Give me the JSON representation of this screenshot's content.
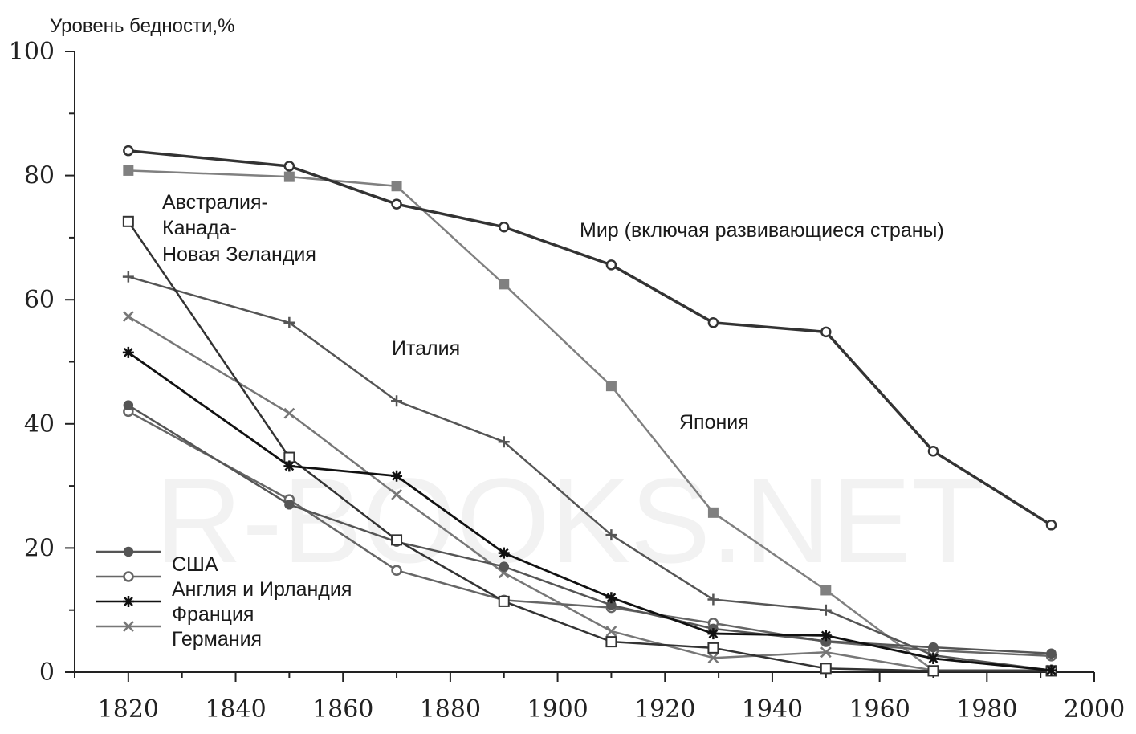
{
  "chart_data": {
    "type": "line",
    "ylabel": "Уровень бедности,%",
    "xlim": [
      1810,
      2000
    ],
    "ylim": [
      0,
      100
    ],
    "x_ticks": [
      1820,
      1840,
      1860,
      1880,
      1900,
      1920,
      1940,
      1960,
      1980,
      2000
    ],
    "y_ticks": [
      0,
      20,
      40,
      60,
      80,
      100
    ],
    "grid": false,
    "legend_position": "bottom-left",
    "watermark": "R-BOOKS.NET",
    "annotations": [
      {
        "text": "Австралия-",
        "series": "Австралия-Канада-Новая Зеландия"
      },
      {
        "text": "Канада-",
        "series": "Австралия-Канада-Новая Зеландия"
      },
      {
        "text": "Новая Зеландия",
        "series": "Австралия-Канада-Новая Зеландия"
      },
      {
        "text": "Италия",
        "series": "Италия"
      },
      {
        "text": "Япония",
        "series": "Япония"
      },
      {
        "text": "Мир (включая развивающиеся страны)",
        "series": "Мир (включая развивающиеся страны)"
      }
    ],
    "series": [
      {
        "name": "Мир (включая развивающиеся страны)",
        "marker": "open-circle",
        "color": "#333333",
        "x": [
          1820,
          1850,
          1870,
          1890,
          1910,
          1929,
          1950,
          1970,
          1992
        ],
        "y": [
          84.0,
          81.5,
          75.4,
          71.7,
          65.6,
          56.3,
          54.8,
          35.6,
          23.7
        ]
      },
      {
        "name": "Япония",
        "marker": "filled-square",
        "color": "#808080",
        "x": [
          1820,
          1850,
          1870,
          1890,
          1910,
          1929,
          1950,
          1970,
          1992
        ],
        "y": [
          80.8,
          79.8,
          78.3,
          62.5,
          46.1,
          25.7,
          13.2,
          0.3,
          0.3
        ]
      },
      {
        "name": "Австралия-Канада-Новая Зеландия",
        "marker": "open-square",
        "color": "#333333",
        "x": [
          1820,
          1850,
          1870,
          1890,
          1910,
          1929,
          1950,
          1970,
          1992
        ],
        "y": [
          72.6,
          34.6,
          21.3,
          11.4,
          4.9,
          3.9,
          0.6,
          0.2,
          0.2
        ]
      },
      {
        "name": "Италия",
        "marker": "plus",
        "color": "#555555",
        "x": [
          1820,
          1850,
          1870,
          1890,
          1910,
          1929,
          1950,
          1970,
          1992
        ],
        "y": [
          63.7,
          56.3,
          43.7,
          37.1,
          22.1,
          11.7,
          10.0,
          2.7,
          0.3
        ]
      },
      {
        "name": "США",
        "marker": "filled-circle",
        "color": "#555555",
        "x": [
          1820,
          1850,
          1870,
          1890,
          1910,
          1929,
          1950,
          1970,
          1992
        ],
        "y": [
          43.0,
          27.0,
          21.0,
          17.0,
          10.8,
          7.0,
          5.0,
          4.0,
          3.0
        ]
      },
      {
        "name": "Англия и Ирландия",
        "marker": "open-circle",
        "color": "#666666",
        "x": [
          1820,
          1850,
          1870,
          1890,
          1910,
          1929,
          1950,
          1970,
          1992
        ],
        "y": [
          42.0,
          27.8,
          16.4,
          11.6,
          10.4,
          7.9,
          4.9,
          3.5,
          2.6
        ]
      },
      {
        "name": "Франция",
        "marker": "asterisk",
        "color": "#111111",
        "x": [
          1820,
          1850,
          1870,
          1890,
          1910,
          1929,
          1950,
          1970,
          1992
        ],
        "y": [
          51.5,
          33.2,
          31.6,
          19.2,
          12.0,
          6.2,
          5.9,
          2.2,
          0.3
        ]
      },
      {
        "name": "Германия",
        "marker": "x",
        "color": "#777777",
        "x": [
          1820,
          1850,
          1870,
          1890,
          1910,
          1929,
          1950,
          1970,
          1992
        ],
        "y": [
          57.3,
          41.7,
          28.6,
          16.0,
          6.6,
          2.3,
          3.2,
          0.3,
          0.3
        ]
      }
    ],
    "legend": [
      {
        "label": "США",
        "series": "США"
      },
      {
        "label": "Англия и Ирландия",
        "series": "Англия и Ирландия"
      },
      {
        "label": "Франция",
        "series": "Франция"
      },
      {
        "label": "Германия",
        "series": "Германия"
      }
    ]
  }
}
